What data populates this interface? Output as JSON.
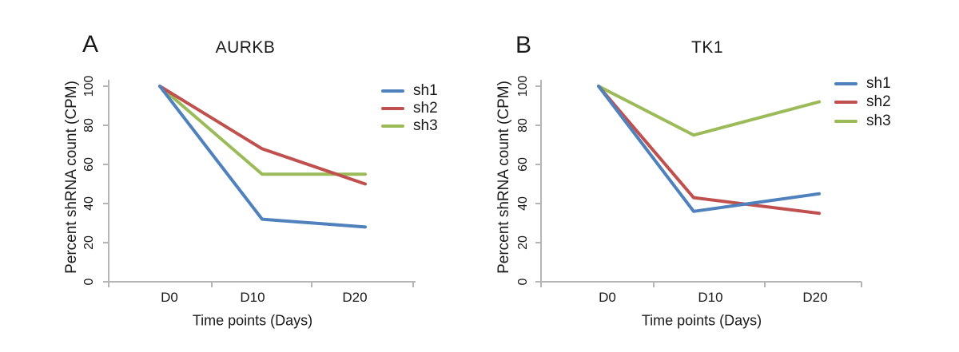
{
  "style": {
    "background": "#ffffff",
    "axis_color": "#b5b5b5",
    "text_color": "#1a1a1a"
  },
  "chart_data": [
    {
      "type": "line",
      "panel_label": "A",
      "title": "AURKB",
      "xlabel": "Time points (Days)",
      "ylabel": "Percent shRNA count (CPM)",
      "categories": [
        "D0",
        "D10",
        "D20"
      ],
      "y_ticks": [
        0,
        20,
        40,
        60,
        80,
        100
      ],
      "ylim": [
        0,
        100
      ],
      "grid": false,
      "legend_position": "right",
      "series": [
        {
          "name": "sh1",
          "color": "#4f81bd",
          "values": [
            100,
            32,
            28
          ]
        },
        {
          "name": "sh2",
          "color": "#c0504d",
          "values": [
            100,
            68,
            50
          ]
        },
        {
          "name": "sh3",
          "color": "#9bbb59",
          "values": [
            100,
            55,
            55
          ]
        }
      ]
    },
    {
      "type": "line",
      "panel_label": "B",
      "title": "TK1",
      "xlabel": "Time points (Days)",
      "ylabel": "Percent shRNA count (CPM)",
      "categories": [
        "D0",
        "D10",
        "D20"
      ],
      "y_ticks": [
        0,
        20,
        40,
        60,
        80,
        100
      ],
      "ylim": [
        0,
        100
      ],
      "grid": false,
      "legend_position": "right",
      "series": [
        {
          "name": "sh1",
          "color": "#4f81bd",
          "values": [
            100,
            36,
            45
          ]
        },
        {
          "name": "sh2",
          "color": "#c0504d",
          "values": [
            100,
            43,
            35
          ]
        },
        {
          "name": "sh3",
          "color": "#9bbb59",
          "values": [
            100,
            75,
            92
          ]
        }
      ]
    }
  ]
}
